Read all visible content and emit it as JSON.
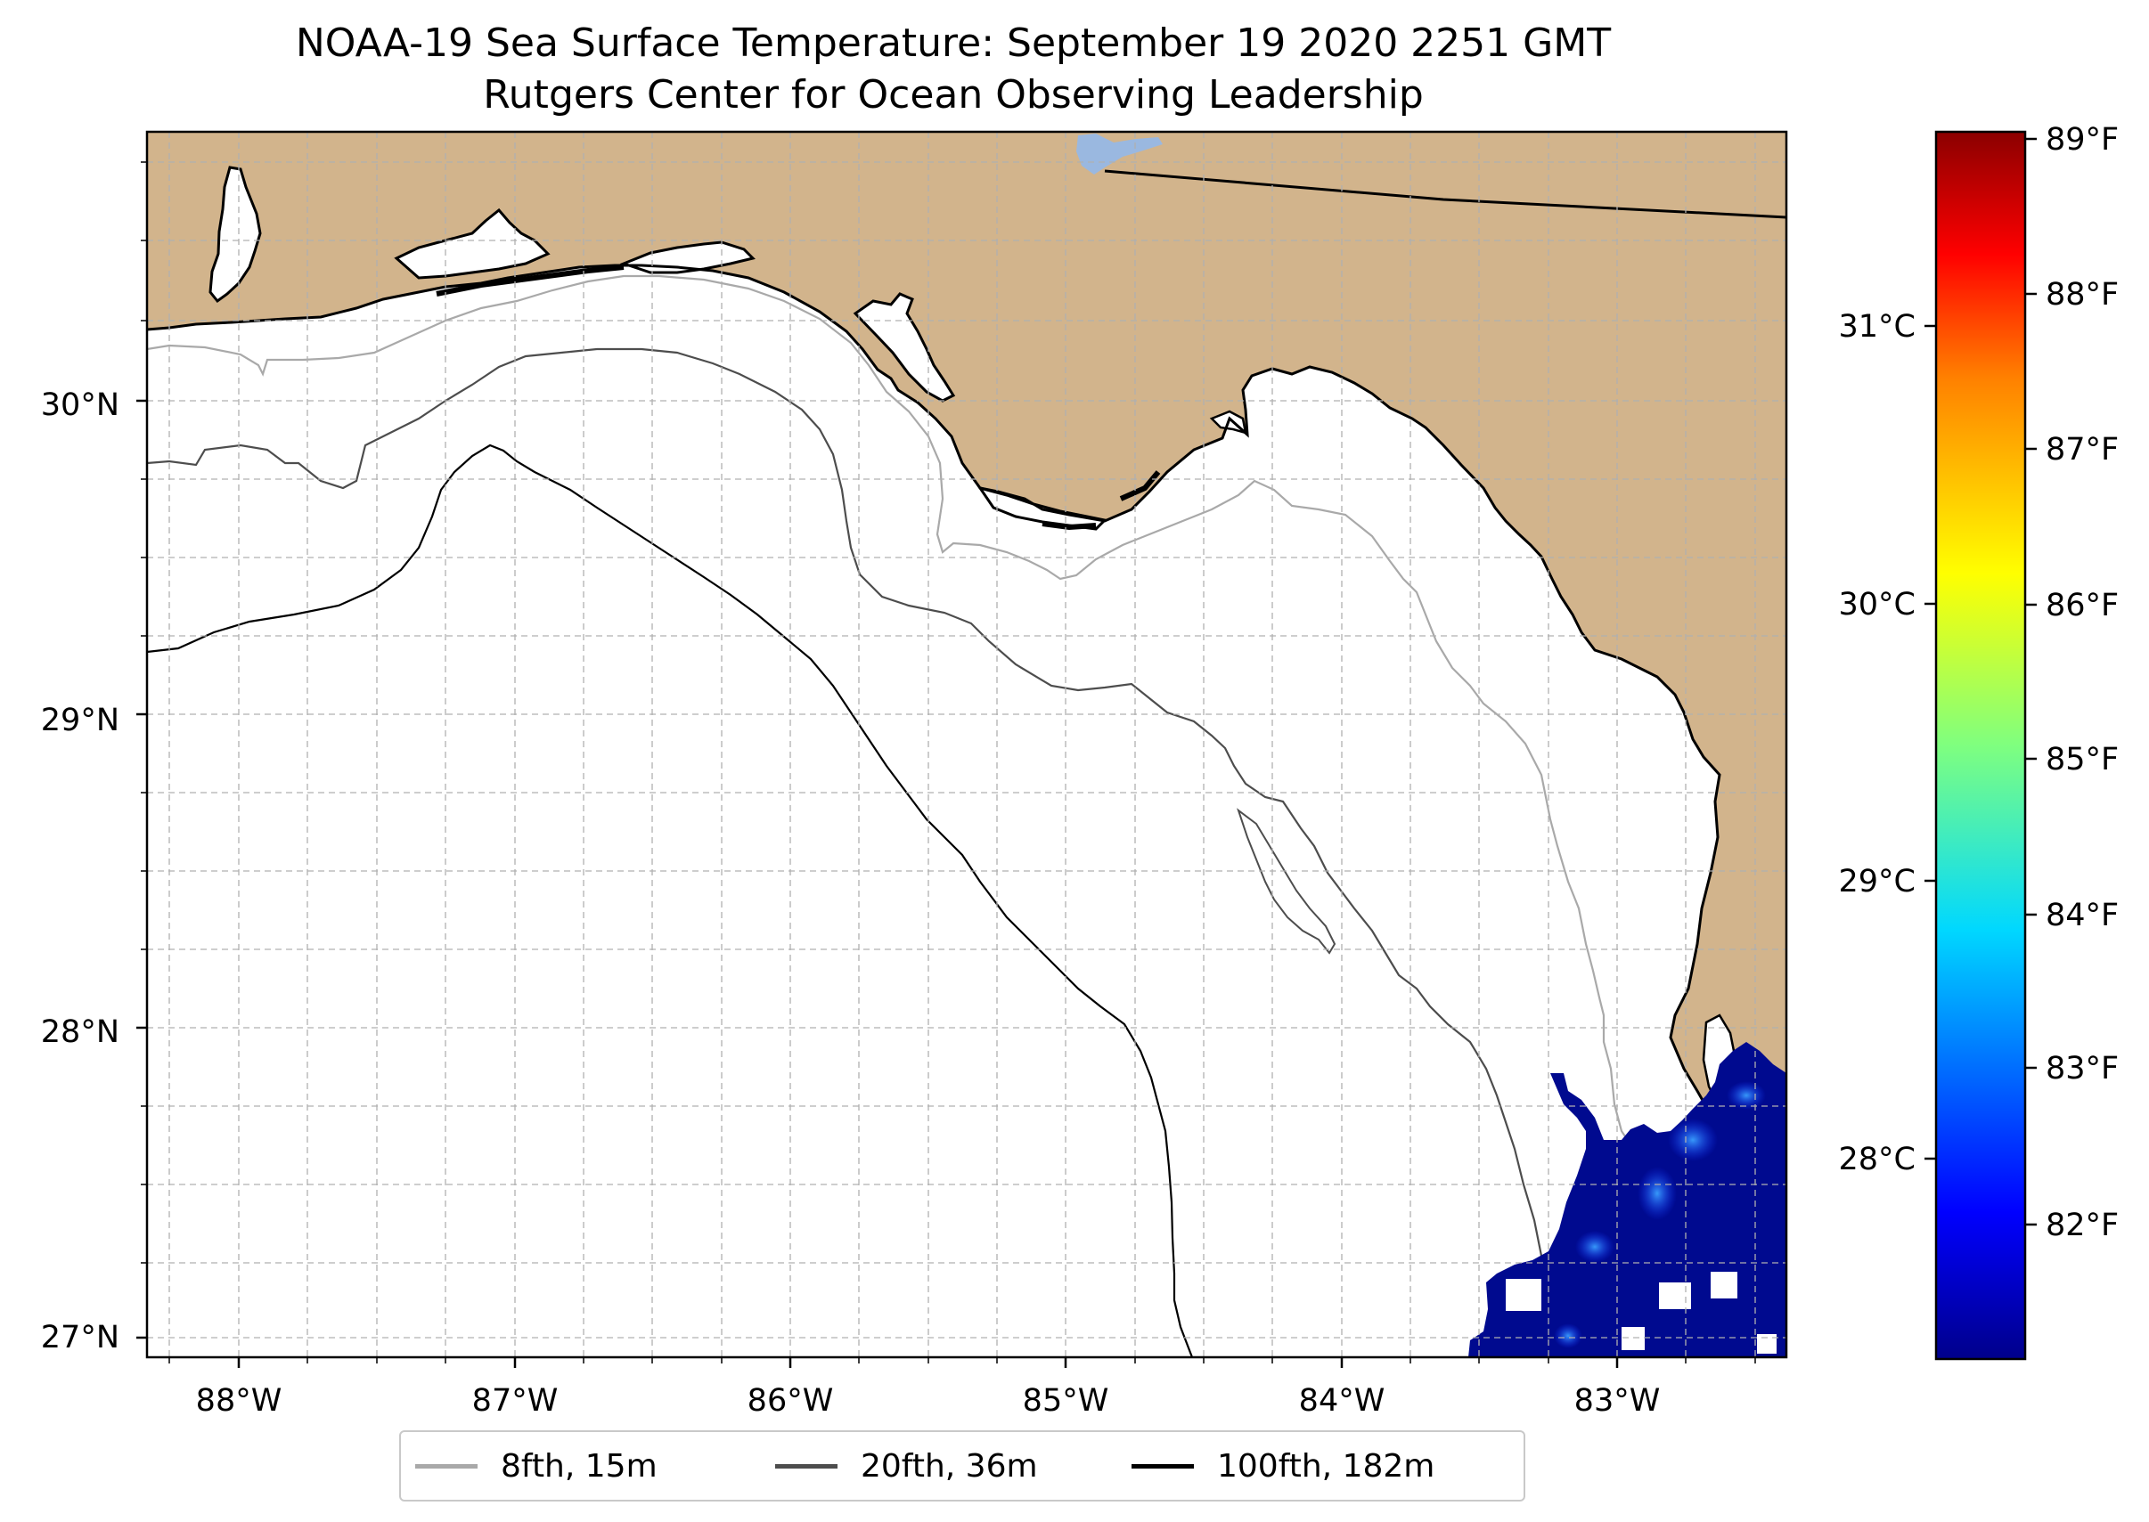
{
  "figure": {
    "title": "NOAA-19 Sea Surface Temperature: September 19 2020 2251 GMT",
    "subtitle": "Rutgers Center for Ocean Observing Leadership"
  },
  "map": {
    "projection": "PlateCarree",
    "lon_range": [
      -88.33,
      -82.37
    ],
    "lat_range": [
      26.94,
      30.85
    ],
    "land_color": "#d2b48c",
    "ocean_color": "#ffffff",
    "grid": true,
    "gridline_style": "dashed",
    "lat_labels": [
      "27°N",
      "28°N",
      "29°N",
      "30°N"
    ],
    "lon_labels": [
      "88°W",
      "87°W",
      "86°W",
      "85°W",
      "84°W",
      "83°W"
    ]
  },
  "colorbar": {
    "colormap": "jet",
    "colors": [
      "#00008b",
      "#0000ff",
      "#00d8ff",
      "#7fff7f",
      "#ffff00",
      "#ff8000",
      "#ff0000",
      "#8b0000"
    ],
    "fahrenheit_ticks": [
      "82°F",
      "83°F",
      "84°F",
      "85°F",
      "86°F",
      "87°F",
      "88°F",
      "89°F"
    ],
    "celsius_ticks": [
      "28°C",
      "29°C",
      "30°C",
      "31°C"
    ]
  },
  "legend": {
    "placement": "bottom-center",
    "items": [
      {
        "label": "8fth, 15m",
        "color": "#a9a9a9"
      },
      {
        "label": "20fth, 36m",
        "color": "#4d4d4d"
      },
      {
        "label": "100fth, 182m",
        "color": "#000000"
      }
    ]
  }
}
